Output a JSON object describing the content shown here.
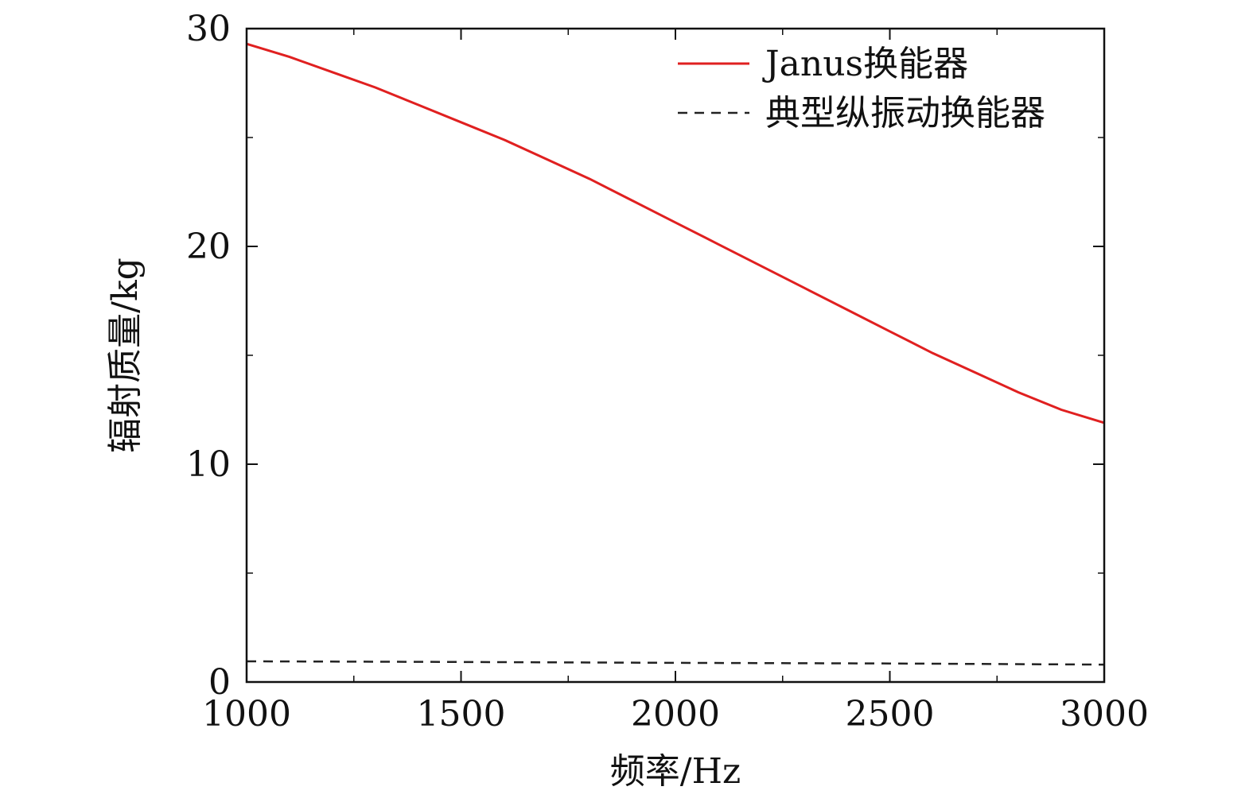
{
  "chart_data": {
    "type": "line",
    "title": "",
    "xlabel": "频率/Hz",
    "ylabel": "辐射质量/kg",
    "xlim": [
      1000,
      3000
    ],
    "ylim": [
      0,
      30
    ],
    "x_ticks": [
      "1000",
      "1500",
      "2000",
      "2500",
      "3000"
    ],
    "y_ticks": [
      "0",
      "10",
      "20",
      "30"
    ],
    "x_minor_step": 250,
    "y_minor_step": 5,
    "grid": false,
    "legend_position": "top-right",
    "series": [
      {
        "name": "Janus换能器",
        "color": "#e02020",
        "style": "solid",
        "x": [
          1000,
          1100,
          1200,
          1300,
          1400,
          1500,
          1600,
          1700,
          1800,
          1900,
          2000,
          2100,
          2200,
          2300,
          2400,
          2500,
          2600,
          2700,
          2800,
          2900,
          3000
        ],
        "y": [
          29.3,
          28.7,
          28.0,
          27.3,
          26.5,
          25.7,
          24.9,
          24.0,
          23.1,
          22.1,
          21.1,
          20.1,
          19.1,
          18.1,
          17.1,
          16.1,
          15.1,
          14.2,
          13.3,
          12.5,
          11.9
        ]
      },
      {
        "name": "典型纵振动换能器",
        "color": "#222222",
        "style": "dashed",
        "x": [
          1000,
          1500,
          2000,
          2500,
          3000
        ],
        "y": [
          0.95,
          0.92,
          0.88,
          0.85,
          0.8
        ]
      }
    ]
  }
}
